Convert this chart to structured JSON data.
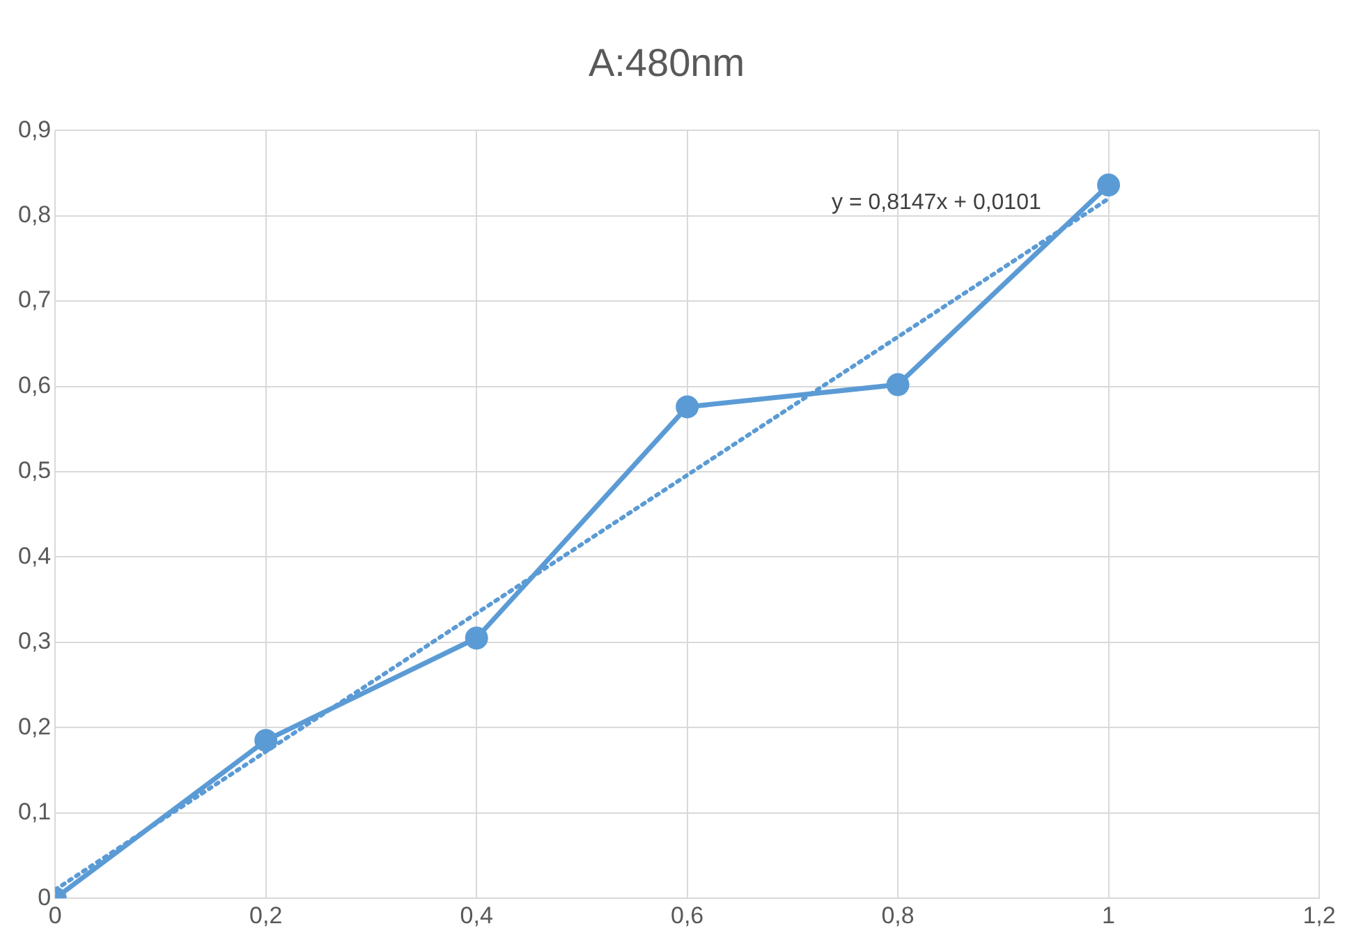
{
  "chart_data": {
    "type": "scatter",
    "title": "A:480nm",
    "x": [
      0,
      0.2,
      0.4,
      0.6,
      0.8,
      1
    ],
    "series": [
      {
        "type": "line",
        "color": "#5b9bd5",
        "values": [
          0,
          0.185,
          0.305,
          0.576,
          0.602,
          0.836
        ],
        "marker": "circle",
        "line_style": "solid"
      },
      {
        "type": "line",
        "color": "#5b9bd5",
        "x": [
          0,
          1
        ],
        "values": [
          0.01,
          0.82
        ],
        "marker": "none",
        "line_style": "dotted"
      }
    ],
    "xlim": [
      0,
      1.2
    ],
    "xticks": [
      0,
      {
        "value": 0.2,
        "label": "0,2"
      },
      {
        "value": 0.4,
        "label": "0,4"
      },
      {
        "value": 0.6,
        "label": "0,6"
      },
      {
        "value": 0.8,
        "label": "0,8"
      },
      1,
      {
        "value": 1.2,
        "label": "1,2"
      }
    ],
    "ylim": [
      0,
      0.9
    ],
    "yticks": [
      0,
      {
        "value": 0.1,
        "label": "0,1"
      },
      {
        "value": 0.2,
        "label": "0,2"
      },
      {
        "value": 0.3,
        "label": "0,3"
      },
      {
        "value": 0.4,
        "label": "0,4"
      },
      {
        "value": 0.5,
        "label": "0,5"
      },
      {
        "value": 0.6,
        "label": "0,6"
      },
      {
        "value": 0.7,
        "label": "0,7"
      },
      {
        "value": 0.8,
        "label": "0,8"
      },
      {
        "value": 0.9,
        "label": "0,9"
      }
    ],
    "annotations": [
      "y = 0,8147x + 0,0101"
    ],
    "grid": true,
    "legend": false
  }
}
